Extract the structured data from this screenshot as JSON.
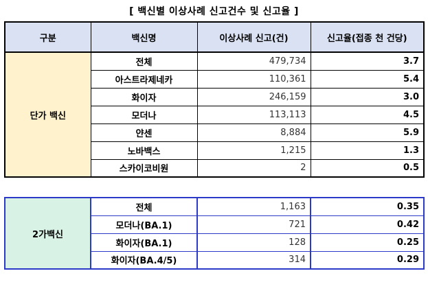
{
  "title": "[ 백신별 이상사례 신고건수 및 신고율 ]",
  "columns": [
    "구분",
    "백신명",
    "이상사례 신고(건)",
    "신고율(접종 천 건당)"
  ],
  "table1": {
    "group": "단가 백신",
    "rows": [
      {
        "name": "전체",
        "count": "479,734",
        "rate": "3.7"
      },
      {
        "name": "아스트라제네카",
        "count": "110,361",
        "rate": "5.4"
      },
      {
        "name": "화이자",
        "count": "246,159",
        "rate": "3.0"
      },
      {
        "name": "모더나",
        "count": "113,113",
        "rate": "4.5"
      },
      {
        "name": "얀센",
        "count": "8,884",
        "rate": "5.9"
      },
      {
        "name": "노바백스",
        "count": "1,215",
        "rate": "1.3"
      },
      {
        "name": "스카이코비원",
        "count": "2",
        "rate": "0.5"
      }
    ]
  },
  "table2": {
    "group": "2가백신",
    "rows": [
      {
        "name": "전체",
        "count": "1,163",
        "rate": "0.35"
      },
      {
        "name": "모더나(BA.1)",
        "count": "721",
        "rate": "0.42"
      },
      {
        "name": "화이자(BA.1)",
        "count": "128",
        "rate": "0.25"
      },
      {
        "name": "화이자(BA.4/5)",
        "count": "314",
        "rate": "0.29"
      }
    ]
  }
}
